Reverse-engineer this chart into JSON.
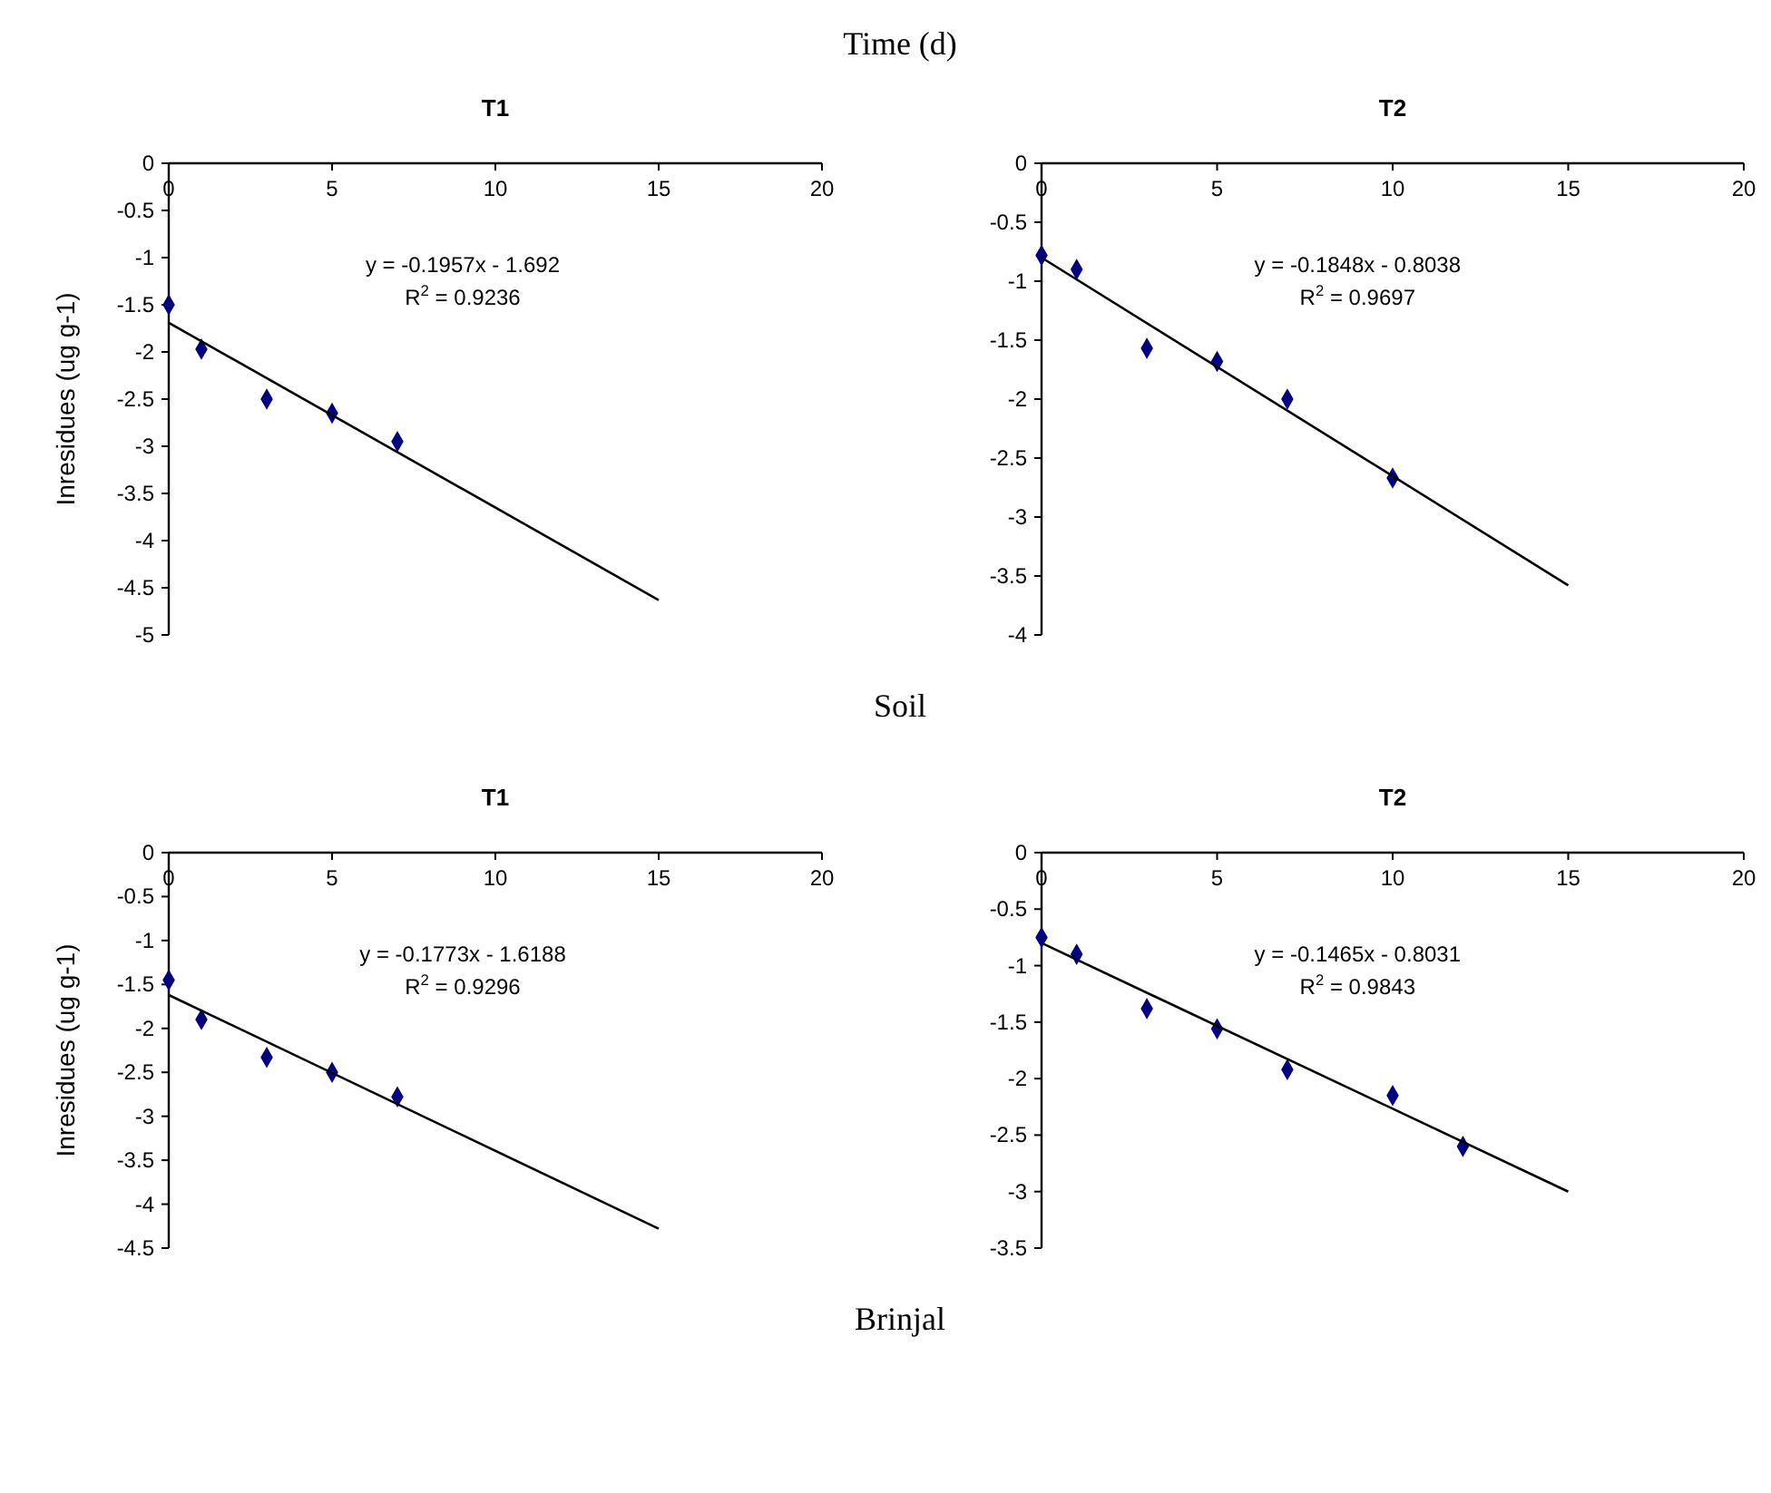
{
  "chart_data": [
    {
      "type": "scatter",
      "title": "T1",
      "xlabel": "Time (d)",
      "ylabel": "Inresidues (ug g-1)",
      "xlim": [
        0,
        20
      ],
      "xticks": [
        0,
        5,
        10,
        15,
        20
      ],
      "ylim": [
        -5,
        0
      ],
      "yticks": [
        -5,
        -4.5,
        -4,
        -3.5,
        -3,
        -2.5,
        -2,
        -1.5,
        -1,
        -0.5,
        0
      ],
      "grid": false,
      "annotations": [
        "y = -0.1957x - 1.692",
        "R$^{2}$ = 0.9236",
        "Soil"
      ],
      "series": [
        {
          "color": "#000080",
          "marker": "diamond",
          "x": [
            0,
            1,
            3,
            5,
            7
          ],
          "values": [
            -1.5,
            -1.97,
            -2.5,
            -2.65,
            -2.95
          ]
        },
        {
          "type": "line",
          "color": "#000000",
          "marker": "none",
          "x": [
            0,
            15
          ],
          "values": [
            -1.69,
            -4.63
          ]
        }
      ]
    },
    {
      "type": "scatter",
      "title": "T2",
      "xlim": [
        0,
        20
      ],
      "xticks": [
        0,
        5,
        10,
        15,
        20
      ],
      "ylim": [
        -4,
        0
      ],
      "yticks": [
        -4,
        -3.5,
        -3,
        -2.5,
        -2,
        -1.5,
        -1,
        -0.5,
        0
      ],
      "grid": false,
      "annotations": [
        "y = -0.1848x - 0.8038",
        "R$^{2}$ = 0.9697"
      ],
      "series": [
        {
          "color": "#000080",
          "marker": "diamond",
          "x": [
            0,
            1,
            3,
            5,
            7,
            10
          ],
          "values": [
            -0.78,
            -0.9,
            -1.57,
            -1.68,
            -2.0,
            -2.67
          ]
        },
        {
          "type": "line",
          "color": "#000000",
          "marker": "none",
          "x": [
            0,
            15
          ],
          "values": [
            -0.8,
            -3.58
          ]
        }
      ]
    },
    {
      "type": "scatter",
      "title": "T1",
      "ylabel": "Inresidues (ug g-1)",
      "xlim": [
        0,
        20
      ],
      "xticks": [
        0,
        5,
        10,
        15,
        20
      ],
      "ylim": [
        -4.5,
        0
      ],
      "yticks": [
        -4.5,
        -4,
        -3.5,
        -3,
        -2.5,
        -2,
        -1.5,
        -1,
        -0.5,
        0
      ],
      "grid": false,
      "annotations": [
        "y = -0.1773x - 1.6188",
        "R$^{2}$ = 0.9296",
        "Brinjal"
      ],
      "series": [
        {
          "color": "#000080",
          "marker": "diamond",
          "x": [
            0,
            1,
            3,
            5,
            7
          ],
          "values": [
            -1.45,
            -1.9,
            -2.33,
            -2.5,
            -2.78
          ]
        },
        {
          "type": "line",
          "color": "#000000",
          "marker": "none",
          "x": [
            0,
            15
          ],
          "values": [
            -1.62,
            -4.28
          ]
        }
      ]
    },
    {
      "type": "scatter",
      "title": "T2",
      "xlim": [
        0,
        20
      ],
      "xticks": [
        0,
        5,
        10,
        15,
        20
      ],
      "ylim": [
        -3.5,
        0
      ],
      "yticks": [
        -3.5,
        -3,
        -2.5,
        -2,
        -1.5,
        -1,
        -0.5,
        0
      ],
      "grid": false,
      "annotations": [
        "y = -0.1465x - 0.8031",
        "R$^{2}$ = 0.9843"
      ],
      "series": [
        {
          "color": "#000080",
          "marker": "diamond",
          "x": [
            0,
            1,
            3,
            5,
            7,
            10,
            12
          ],
          "values": [
            -0.75,
            -0.9,
            -1.38,
            -1.56,
            -1.92,
            -2.15,
            -2.6
          ]
        },
        {
          "type": "line",
          "color": "#000000",
          "marker": "none",
          "x": [
            0,
            15
          ],
          "values": [
            -0.8,
            -3.0
          ]
        }
      ]
    }
  ]
}
